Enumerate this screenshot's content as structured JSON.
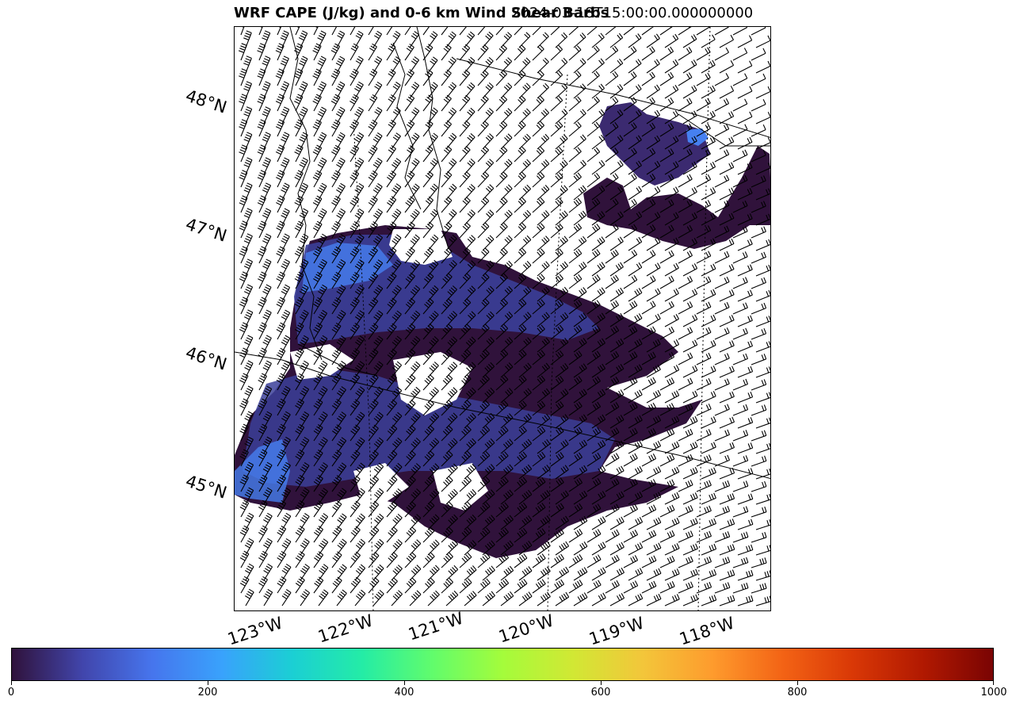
{
  "title": {
    "left": "WRF CAPE (J/kg) and 0-6 km Wind Shear Barbs",
    "right": "2024-03-18T15:00:00.000000000"
  },
  "map": {
    "lat_labels": [
      "48°N",
      "47°N",
      "46°N",
      "45°N"
    ],
    "lon_labels": [
      "123°W",
      "122°W",
      "121°W",
      "120°W",
      "119°W",
      "118°W"
    ],
    "colors": {
      "cape_dark": "#30123b",
      "cape_mid": "#3b3f99",
      "cape_light": "#4680f0",
      "barb": "#000000",
      "border": "#000000"
    }
  },
  "colorbar": {
    "min": 0,
    "max": 1000,
    "ticks": [
      "0",
      "200",
      "400",
      "600",
      "800",
      "1000"
    ],
    "colormap": "turbo",
    "stops": [
      "#30123b",
      "#4145ab",
      "#4675ed",
      "#39a2fc",
      "#1bcfd4",
      "#24eca6",
      "#61fc6c",
      "#a4fc3b",
      "#d1e834",
      "#f3c63a",
      "#fe9b2d",
      "#f36315",
      "#d93806",
      "#b11901",
      "#7a0403"
    ]
  }
}
